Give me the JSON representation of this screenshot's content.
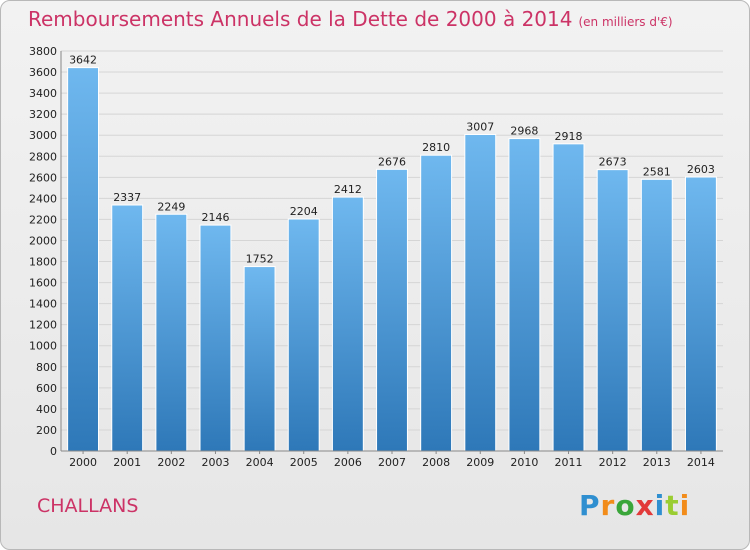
{
  "title": "Remboursements Annuels de la Dette de 2000 à 2014",
  "unit_note": "(en milliers d'€)",
  "city": "CHALLANS",
  "logo": {
    "text": "Proxiti",
    "letters": [
      "P",
      "r",
      "o",
      "x",
      "i",
      "t",
      "i"
    ],
    "colors": [
      "#2f8fd0",
      "#f28c1a",
      "#3aa63a",
      "#e23a3a",
      "#2f8fd0",
      "#9acd32",
      "#f28c1a"
    ]
  },
  "colors": {
    "title": "#cc3366",
    "bar_top": "#6fb8ef",
    "bar_bottom": "#2e78b8",
    "grid": "#d5d5d5",
    "axis_text": "#222222"
  },
  "chart_data": {
    "type": "bar",
    "title": "Remboursements Annuels de la Dette de 2000 à 2014",
    "subtitle": "(en milliers d'€)",
    "xlabel": "",
    "ylabel": "",
    "categories": [
      "2000",
      "2001",
      "2002",
      "2003",
      "2004",
      "2005",
      "2006",
      "2007",
      "2008",
      "2009",
      "2010",
      "2011",
      "2012",
      "2013",
      "2014"
    ],
    "values": [
      3642,
      2337,
      2249,
      2146,
      1752,
      2204,
      2412,
      2676,
      2810,
      3007,
      2968,
      2918,
      2673,
      2581,
      2603
    ],
    "ylim": [
      0,
      3800
    ],
    "yticks": [
      0,
      200,
      400,
      600,
      800,
      1000,
      1200,
      1400,
      1600,
      1800,
      2000,
      2200,
      2400,
      2600,
      2800,
      3000,
      3200,
      3400,
      3600,
      3800
    ],
    "grid": true,
    "data_labels": true
  }
}
